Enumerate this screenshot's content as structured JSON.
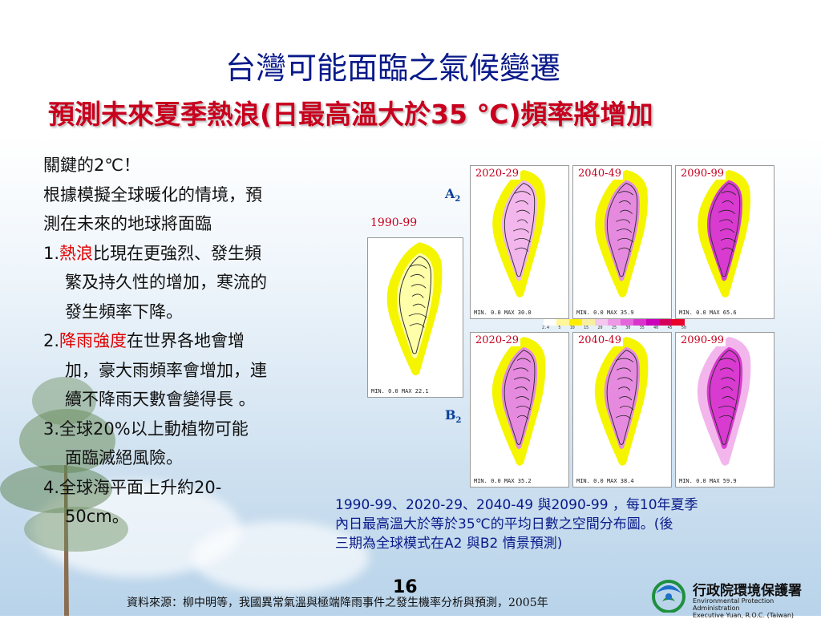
{
  "slide": {
    "title": "台灣可能面臨之氣候變遷",
    "subtitle": "預測未來夏季熱浪(日最高溫大於35 ℃)頻率將增加",
    "page_number": "16",
    "source": "資料來源：柳中明等，我國異常氣溫與極端降雨事件之發生機率分析與預測，2005年"
  },
  "bullets": {
    "line1": "關鍵的2℃！",
    "line2": "根據模擬全球暖化的情境，預",
    "line3": "測在未來的地球將面臨",
    "item1_num": "1.",
    "item1_red": "熱浪",
    "item1_rest": "比現在更強烈、發生頻",
    "item1_l2": "繁及持久性的增加，寒流的",
    "item1_l3": "發生頻率下降。",
    "item2_num": "2.",
    "item2_red": "降雨強度",
    "item2_rest": "在世界各地會增",
    "item2_l2": "加，豪大雨頻率會增加，連",
    "item2_l3": "續不降雨天數會變得長 。",
    "item3_l1": "3.全球20%以上動植物可能",
    "item3_l2": "面臨滅絕風險。",
    "item4_l1": "4.全球海平面上升約20-",
    "item4_l2": "50cm。"
  },
  "figure": {
    "scenario_a": "A",
    "scenario_a_sub": "2",
    "scenario_b": "B",
    "scenario_b_sub": "2",
    "baseline_label": "1990-99",
    "baseline_minmax": "MIN.  0.0  MAX  22.1",
    "panels_a": [
      {
        "label": "2020-29",
        "minmax": "MIN.  0.0  MAX  30.0"
      },
      {
        "label": "2040-49",
        "minmax": "MIN.  0.0  MAX  35.9"
      },
      {
        "label": "2090-99",
        "minmax": "MIN.  0.0  MAX  65.6"
      }
    ],
    "panels_b": [
      {
        "label": "2020-29",
        "minmax": "MIN.  0.0  MAX  35.2"
      },
      {
        "label": "2040-49",
        "minmax": "MIN.  0.0  MAX  38.4"
      },
      {
        "label": "2090-99",
        "minmax": "MIN.  0.0  MAX  59.9"
      }
    ],
    "colorbar_colors": [
      "#ffffff",
      "#fff799",
      "#ffee00",
      "#f7f0a0",
      "#f4c8ee",
      "#ee99e6",
      "#e566dc",
      "#d933cc",
      "#cc00bb",
      "#d6005a",
      "#e8002a"
    ],
    "colorbar_ticks": [
      "2.4",
      "5",
      "10",
      "15",
      "20",
      "25",
      "30",
      "35",
      "40",
      "45",
      "50"
    ]
  },
  "caption": {
    "line1": "1990-99、2020-29、2040-49 與2090-99 ，每10年夏季",
    "line2": "內日最高溫大於等於35℃的平均日數之空間分布圖。(後",
    "line3": "三期為全球模式在A2 與B2 情景預測)"
  },
  "organization": {
    "name_cn": "行政院環境保護署",
    "name_en_1": "Environmental Protection Administration",
    "name_en_2": "Executive Yuan, R.O.C. (Taiwan)"
  }
}
